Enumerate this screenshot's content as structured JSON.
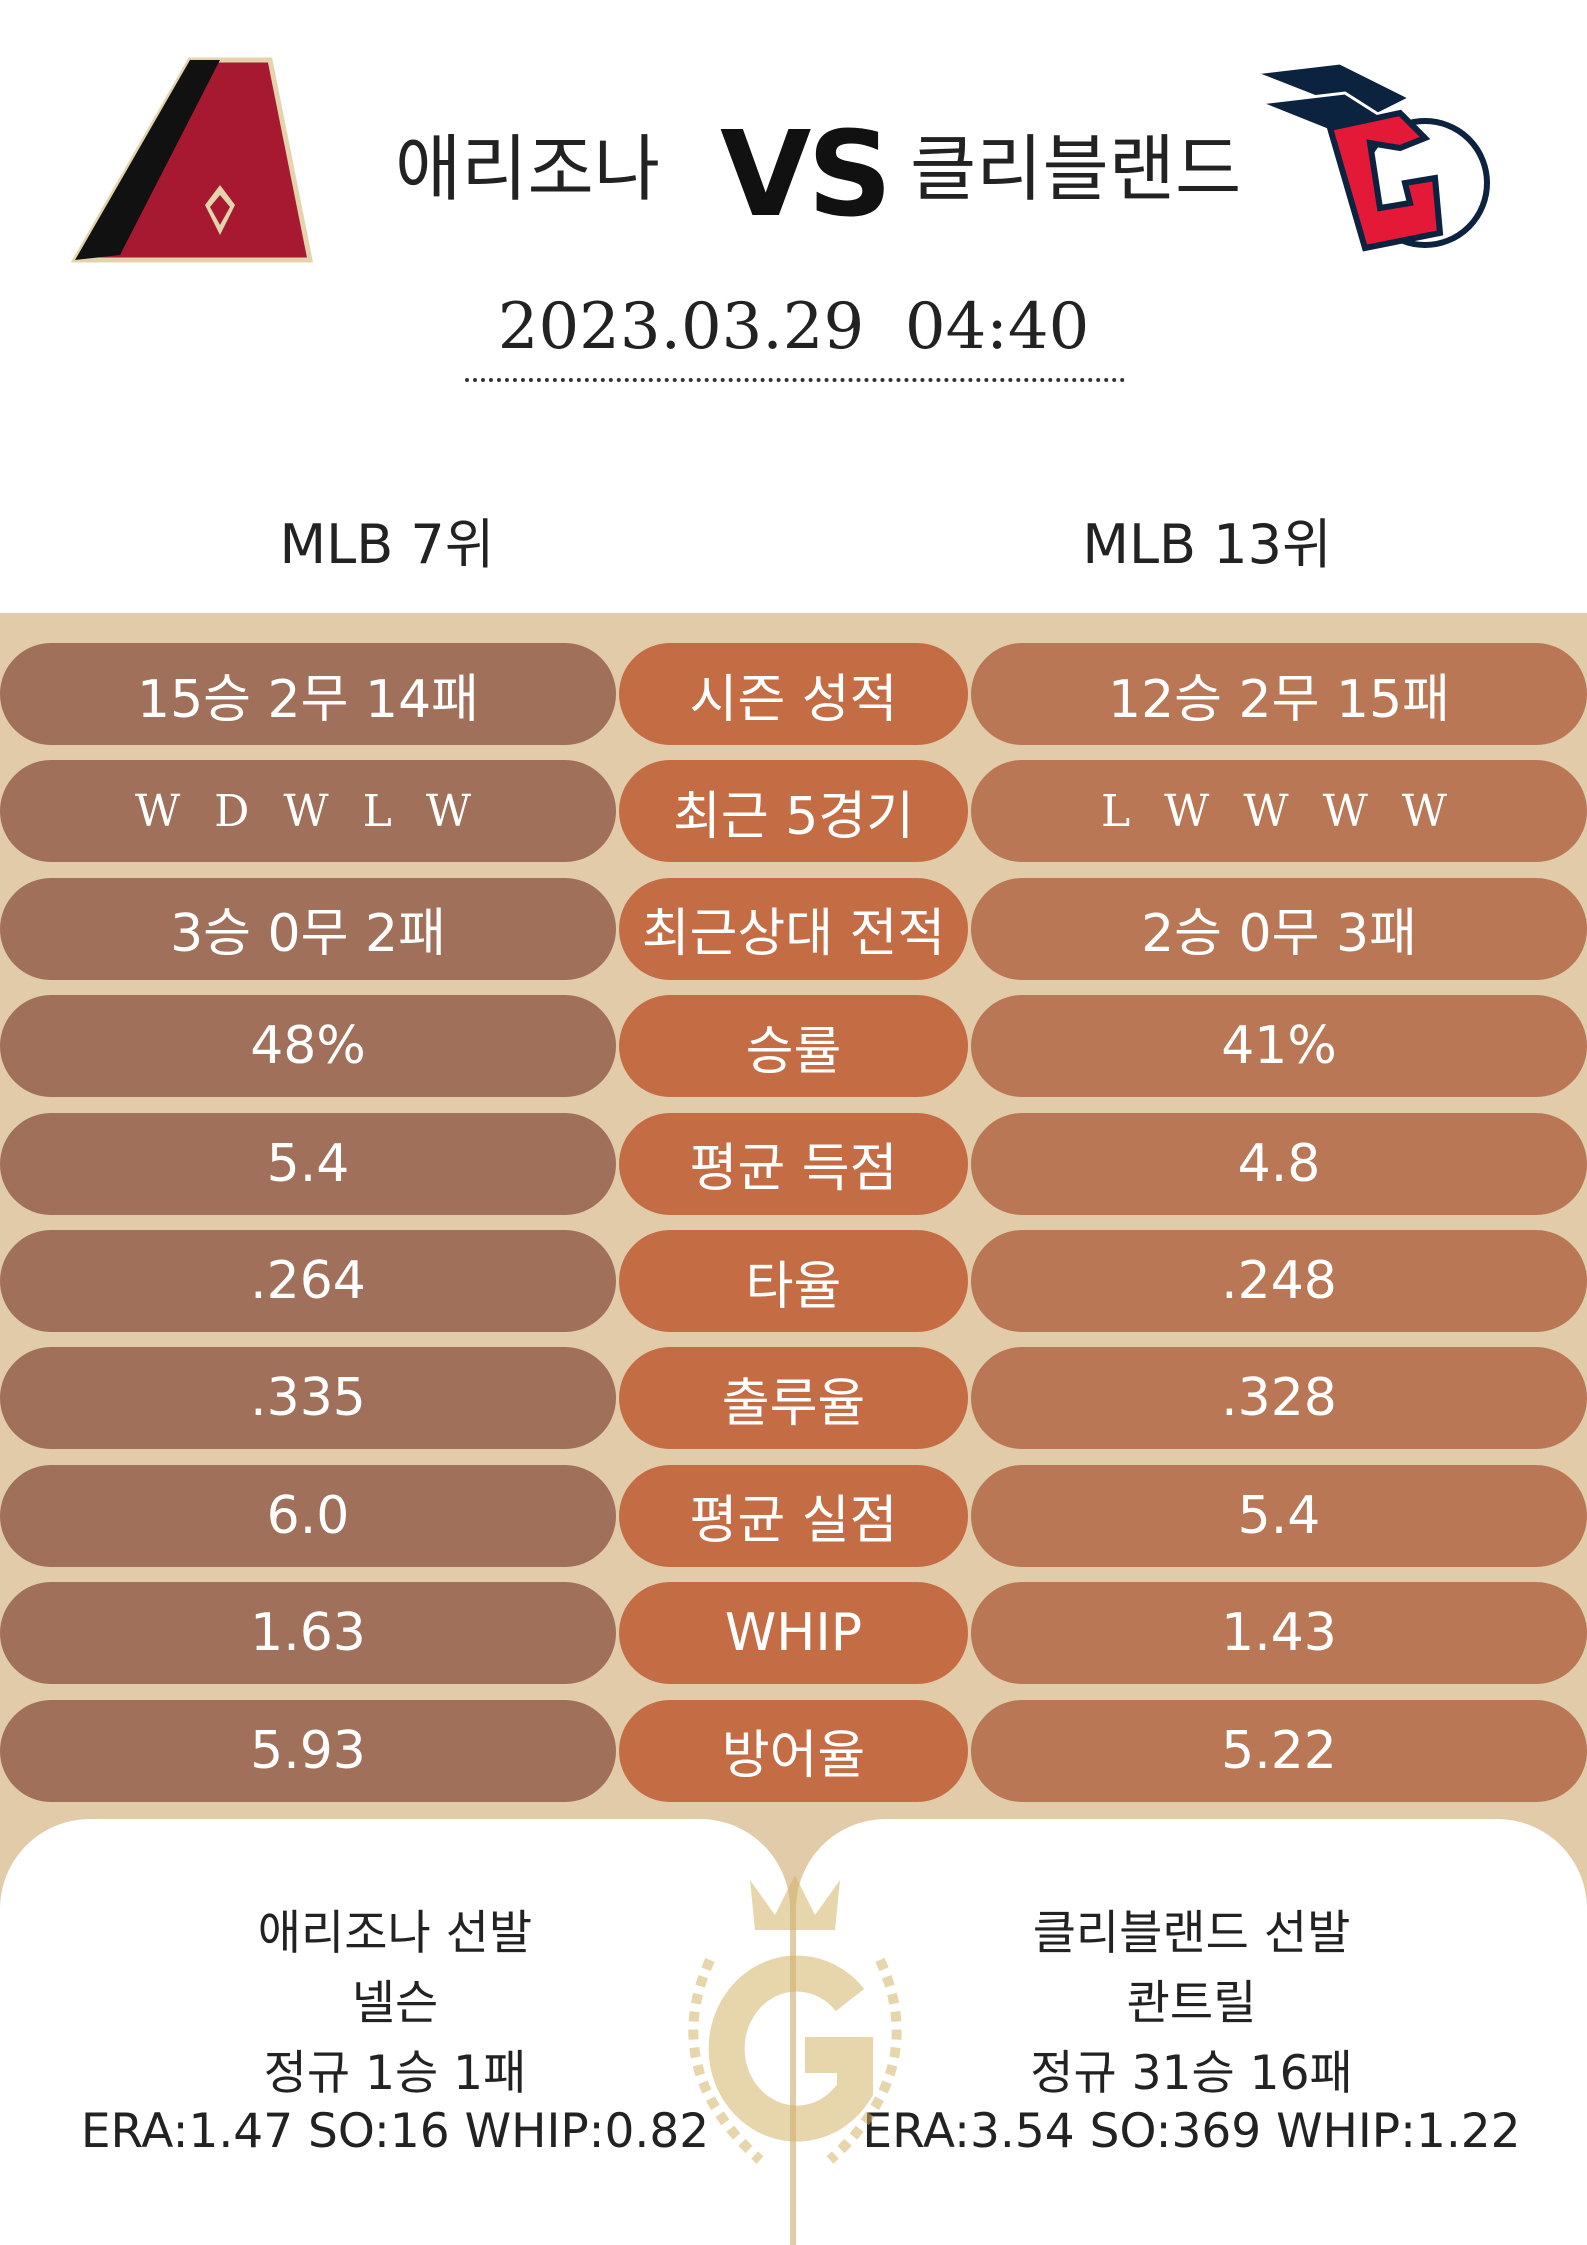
{
  "header": {
    "home_team": "애리조나",
    "vs": "VS",
    "away_team": "클리블랜드",
    "datetime": "2023.03.29  04:40"
  },
  "ranks": {
    "home": "MLB 7위",
    "away": "MLB 13위"
  },
  "stats": [
    [
      "15승 2무 14패",
      "시즌 성적",
      "12승 2무 15패"
    ],
    [
      "W D W L W",
      "최근 5경기",
      "L W W W W"
    ],
    [
      "3승 0무 2패",
      "최근상대 전적",
      "2승 0무 3패"
    ],
    [
      "48%",
      "승률",
      "41%"
    ],
    [
      "5.4",
      "평균 득점",
      "4.8"
    ],
    [
      ".264",
      "타율",
      ".248"
    ],
    [
      ".335",
      "출루율",
      ".328"
    ],
    [
      "6.0",
      "평균 실점",
      "5.4"
    ],
    [
      "1.63",
      "WHIP",
      "1.43"
    ],
    [
      "5.93",
      "방어율",
      "5.22"
    ]
  ],
  "pitchers": {
    "home": [
      "애리조나 선발",
      "넬슨",
      "정규 1승 1패",
      "ERA:1.47 SO:16 WHIP:0.82"
    ],
    "away": [
      "클리블랜드 선발",
      "콴트릴",
      "정규 31승 16패",
      "ERA:3.54 SO:369 WHIP:1.22"
    ]
  }
}
